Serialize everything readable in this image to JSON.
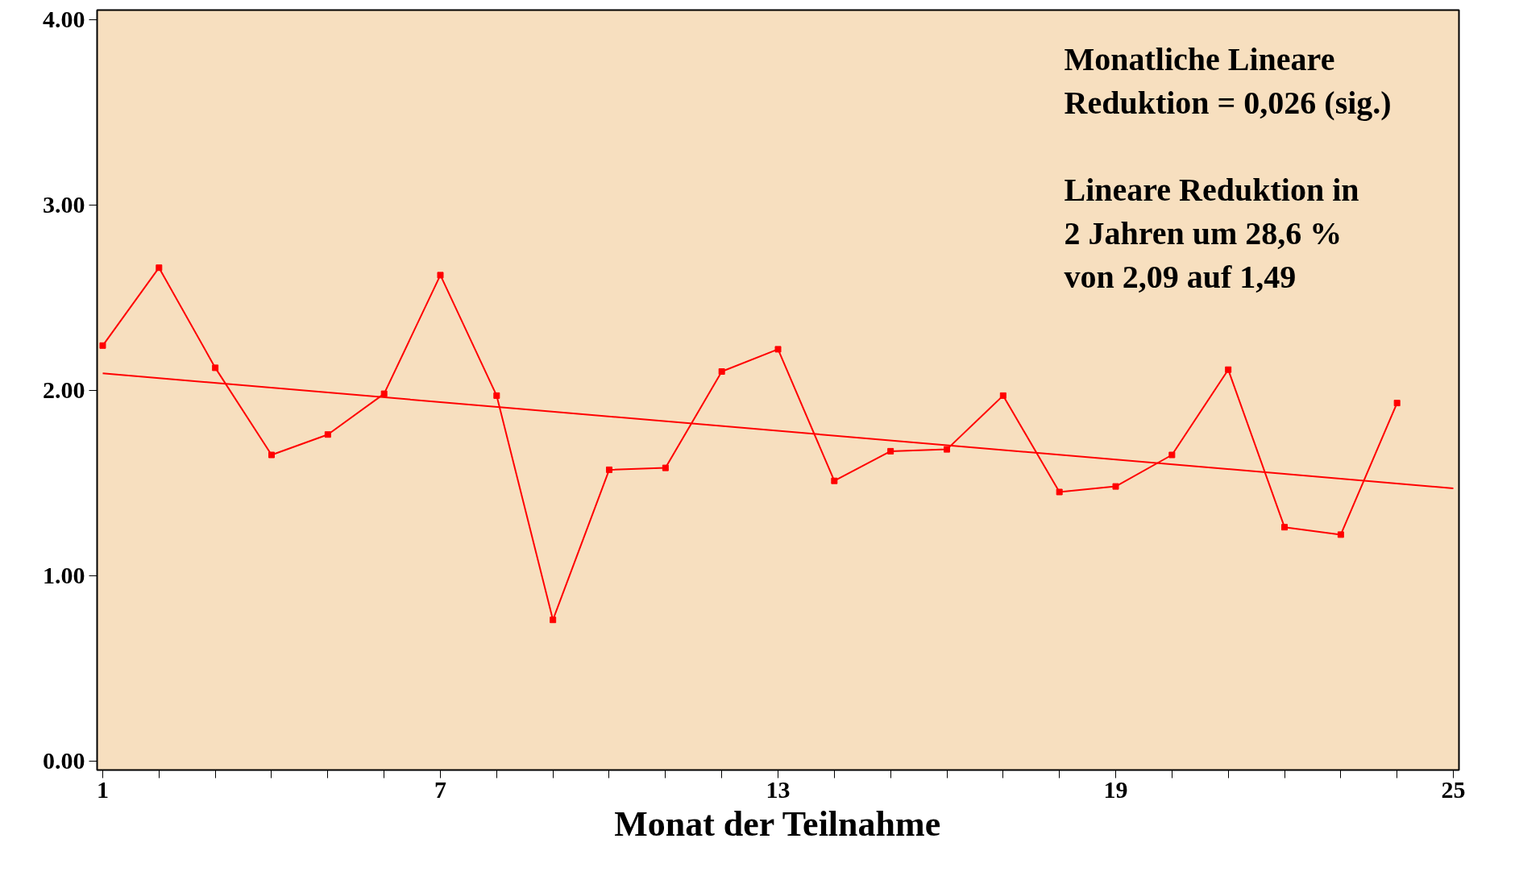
{
  "chart_data": {
    "type": "line",
    "xlabel": "Monat der Teilnahme",
    "x": [
      1,
      2,
      3,
      4,
      5,
      6,
      7,
      8,
      9,
      10,
      11,
      12,
      13,
      14,
      15,
      16,
      17,
      18,
      19,
      20,
      21,
      22,
      23,
      24
    ],
    "series": [
      {
        "color": "#ff0000",
        "marker": "square",
        "values": [
          2.24,
          2.66,
          2.12,
          1.65,
          1.76,
          1.98,
          2.62,
          1.97,
          0.76,
          1.57,
          1.58,
          2.1,
          2.22,
          1.51,
          1.67,
          1.68,
          1.97,
          1.45,
          1.48,
          1.65,
          2.11,
          1.26,
          1.22,
          1.93
        ]
      },
      {
        "type": "line",
        "color": "#ff0000",
        "marker": "none",
        "x": [
          1,
          25
        ],
        "values": [
          2.09,
          1.47
        ]
      }
    ],
    "xlim": [
      0.9,
      25.1
    ],
    "ylim": [
      -0.05,
      4.05
    ],
    "xticks": [
      1,
      {
        "value": 2,
        "label": null
      },
      {
        "value": 3,
        "label": null
      },
      {
        "value": 4,
        "label": null
      },
      {
        "value": 5,
        "label": null
      },
      {
        "value": 6,
        "label": null
      },
      7,
      {
        "value": 8,
        "label": null
      },
      {
        "value": 9,
        "label": null
      },
      {
        "value": 10,
        "label": null
      },
      {
        "value": 11,
        "label": null
      },
      {
        "value": 12,
        "label": null
      },
      13,
      {
        "value": 14,
        "label": null
      },
      {
        "value": 15,
        "label": null
      },
      {
        "value": 16,
        "label": null
      },
      {
        "value": 17,
        "label": null
      },
      {
        "value": 18,
        "label": null
      },
      19,
      {
        "value": 20,
        "label": null
      },
      {
        "value": 21,
        "label": null
      },
      {
        "value": 22,
        "label": null
      },
      {
        "value": 23,
        "label": null
      },
      {
        "value": 24,
        "label": null
      },
      25
    ],
    "yticks": [
      {
        "value": 0,
        "label": "0.00"
      },
      {
        "value": 1,
        "label": "1.00"
      },
      {
        "value": 2,
        "label": "2.00"
      },
      {
        "value": 3,
        "label": "3.00"
      },
      {
        "value": 4,
        "label": "4.00"
      }
    ],
    "grid": false,
    "line_style": "solid",
    "annotations": [
      "Monatliche Lineare\nReduktion = 0,026 (sig.)",
      "Lineare Reduktion in\n2 Jahren um 28,6 %\nvon 2,09 auf 1,49"
    ]
  }
}
